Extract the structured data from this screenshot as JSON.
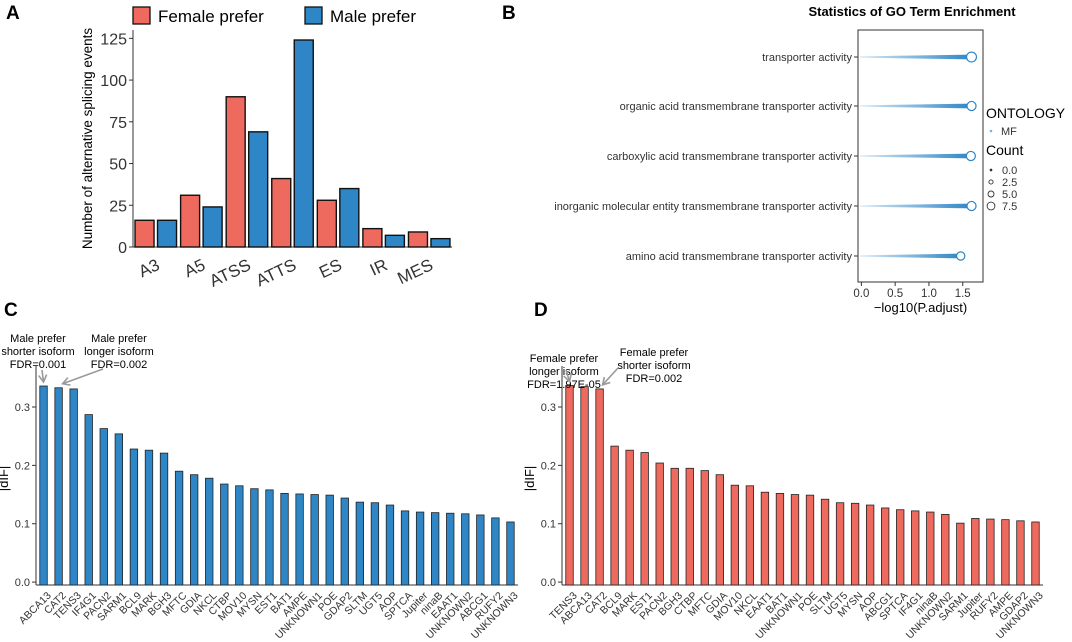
{
  "panels": {
    "A": "A",
    "B": "B",
    "C": "C",
    "D": "D"
  },
  "chart_data": [
    {
      "id": "A",
      "type": "bar",
      "title": "",
      "xlabel": "",
      "ylabel": "Number of alternative splicing events",
      "categories": [
        "A3",
        "A5",
        "ATSS",
        "ATTS",
        "ES",
        "IR",
        "MES"
      ],
      "series": [
        {
          "name": "Female prefer",
          "color": "#EE6A5E",
          "values": [
            16,
            31,
            90,
            41,
            28,
            11,
            9
          ]
        },
        {
          "name": "Male prefer",
          "color": "#2E86C6",
          "values": [
            16,
            24,
            69,
            124,
            35,
            7,
            5
          ]
        }
      ],
      "ylim": [
        0,
        130
      ],
      "yticks": [
        0,
        25,
        50,
        75,
        100,
        125
      ],
      "legend": "top"
    },
    {
      "id": "B",
      "type": "scatter",
      "title": "Statistics of GO Term Enrichment",
      "xlabel": "−log10(P.adjust)",
      "ylabel": "",
      "categories": [
        "transporter activity",
        "organic acid transmembrane transporter activity",
        "carboxylic acid transmembrane transporter activity",
        "inorganic molecular entity transmembrane transporter activity",
        "amino acid transmembrane transporter activity"
      ],
      "values": [
        1.63,
        1.63,
        1.62,
        1.63,
        1.47
      ],
      "counts": [
        8,
        7,
        7,
        7,
        6
      ],
      "xlim": [
        -0.05,
        1.8
      ],
      "xticks": [
        0.0,
        0.5,
        1.0,
        1.5
      ],
      "xtick_labels": [
        "0.0",
        "0.5",
        "1.0",
        "1.5"
      ],
      "color": "#2E86C6",
      "legend": {
        "ontology_title": "ONTOLOGY",
        "ontology_items": [
          "MF"
        ],
        "count_title": "Count",
        "count_items": [
          "0.0",
          "2.5",
          "5.0",
          "7.5"
        ]
      }
    },
    {
      "id": "C",
      "type": "bar",
      "xlabel": "",
      "ylabel": "|dIF|",
      "color": "#2E86C6",
      "categories": [
        "ABCA13",
        "CAT2",
        "TENS3",
        "IF4G1",
        "PACN2",
        "SARM1",
        "BCL9",
        "MARK",
        "BGH3",
        "MFTC",
        "GDIA",
        "NKCL",
        "CTBP",
        "MOV10",
        "MYSN",
        "EST1",
        "BAT1",
        "AMPE",
        "UNKNOWN1",
        "POE",
        "GDAP2",
        "SLTM",
        "UGT5",
        "AOP",
        "SPTCA",
        "Jupiter",
        "ninaB",
        "EAAT1",
        "UNKNOWN2",
        "ABCG1",
        "RUFY2",
        "UNKNOWN3"
      ],
      "values": [
        0.336,
        0.333,
        0.331,
        0.287,
        0.263,
        0.254,
        0.228,
        0.226,
        0.221,
        0.19,
        0.184,
        0.178,
        0.168,
        0.165,
        0.16,
        0.158,
        0.152,
        0.151,
        0.15,
        0.149,
        0.144,
        0.137,
        0.136,
        0.132,
        0.122,
        0.12,
        0.119,
        0.118,
        0.117,
        0.115,
        0.11,
        0.103
      ],
      "ylim": [
        -0.005,
        0.36
      ],
      "yticks": [
        0.0,
        0.1,
        0.2,
        0.3
      ],
      "ytick_labels": [
        "0.0",
        "0.1",
        "0.2",
        "0.3"
      ],
      "annotations": [
        {
          "lines": [
            "Male prefer",
            "shorter isoform",
            "FDR=0.001"
          ],
          "target": "ABCA13"
        },
        {
          "lines": [
            "Male prefer",
            "longer isoform",
            "FDR=0.002"
          ],
          "target": "CAT2"
        }
      ]
    },
    {
      "id": "D",
      "type": "bar",
      "xlabel": "",
      "ylabel": "|dIF|",
      "color": "#EE6A5E",
      "categories": [
        "TENS3",
        "ABCA13",
        "CAT2",
        "BCL9",
        "MARK",
        "EST1",
        "PACN2",
        "BGH3",
        "CTBP",
        "MFTC",
        "GDIA",
        "MOV10",
        "NKCL",
        "EAAT1",
        "BAT1",
        "UNKNOWN1",
        "POE",
        "SLTM",
        "UGT5",
        "MYSN",
        "AOP",
        "ABCG1",
        "SPTCA",
        "IF4G1",
        "ninaB",
        "UNKNOWN2",
        "SARM1",
        "Jupiter",
        "RUFY2",
        "AMPE",
        "GDAP2",
        "UNKNOWN3"
      ],
      "values": [
        0.337,
        0.335,
        0.331,
        0.233,
        0.226,
        0.222,
        0.204,
        0.195,
        0.195,
        0.191,
        0.184,
        0.166,
        0.165,
        0.154,
        0.152,
        0.15,
        0.149,
        0.142,
        0.136,
        0.135,
        0.132,
        0.127,
        0.124,
        0.122,
        0.12,
        0.116,
        0.101,
        0.109,
        0.108,
        0.107,
        0.105,
        0.103
      ],
      "ylim": [
        -0.005,
        0.36
      ],
      "yticks": [
        0.0,
        0.1,
        0.2,
        0.3
      ],
      "ytick_labels": [
        "0.0",
        "0.1",
        "0.2",
        "0.3"
      ],
      "annotations": [
        {
          "lines": [
            "Female prefer",
            "longer isoform",
            "FDR=1.97E-05"
          ],
          "target": "TENS3"
        },
        {
          "lines": [
            "Female prefer",
            "shorter isoform",
            "FDR=0.002"
          ],
          "target": "CAT2"
        }
      ]
    }
  ]
}
